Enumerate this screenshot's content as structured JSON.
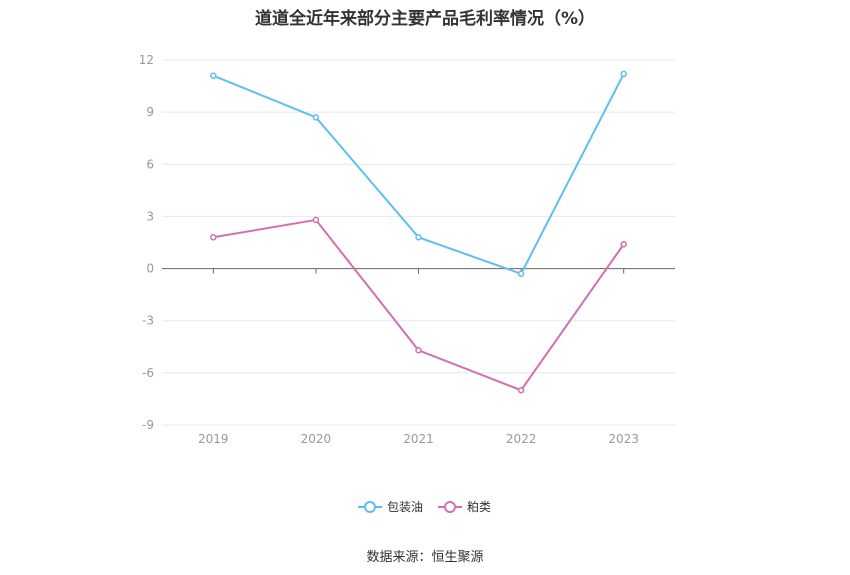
{
  "chart_data": {
    "type": "line",
    "title": "道道全近年来部分主要产品毛利率情况（%）",
    "x": [
      "2019",
      "2020",
      "2021",
      "2022",
      "2023"
    ],
    "series": [
      {
        "name": "包装油",
        "color": "#5bc0eb",
        "values": [
          11.1,
          8.7,
          1.8,
          -0.3,
          11.2
        ]
      },
      {
        "name": "粕类",
        "color": "#d36fb1",
        "values": [
          1.8,
          2.8,
          -4.7,
          -7.0,
          1.4
        ]
      }
    ],
    "ylim": [
      -9,
      12
    ],
    "yticks": [
      12,
      9,
      6,
      3,
      0,
      -3,
      -6,
      -9
    ],
    "grid": true,
    "legend": "bottom-center"
  },
  "source": "数据来源：恒生聚源"
}
